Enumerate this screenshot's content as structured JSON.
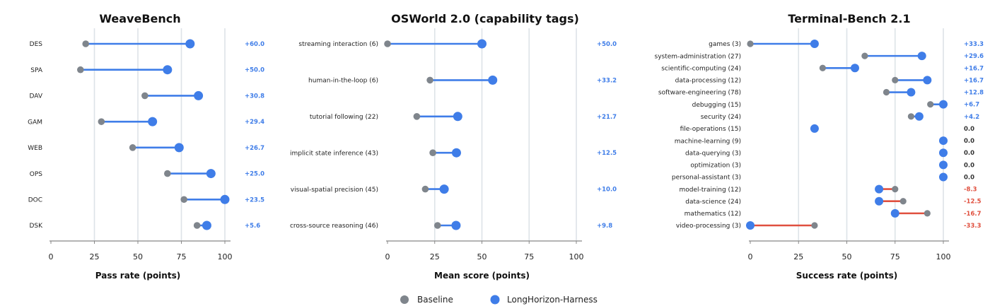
{
  "legend": {
    "baseline_label": "Baseline",
    "harness_label": "LongHorizon-Harness"
  },
  "colors": {
    "baseline": "#7f858c",
    "harness": "#3f7de8",
    "improve_line": "#3f7de8",
    "regress_line": "#e0503f",
    "delta_pos": "#3f7de8",
    "delta_zero": "#333333",
    "delta_neg": "#e0503f",
    "grid": "#dde3e8",
    "axis": "#888888"
  },
  "chart_data": [
    {
      "type": "dumbbell",
      "title": "WeaveBench",
      "xlabel": "Pass rate (points)",
      "xlim": [
        0,
        100
      ],
      "xticks": [
        0,
        25,
        50,
        75,
        100
      ],
      "grid": "vertical",
      "categories": [
        "DES",
        "SPA",
        "DAV",
        "GAM",
        "WEB",
        "OPS",
        "DOC",
        "DSK"
      ],
      "baseline": [
        20,
        17,
        54,
        29,
        47,
        67,
        76.5,
        84
      ],
      "harness": [
        80,
        67,
        84.8,
        58.4,
        73.7,
        92,
        100,
        89.6
      ],
      "deltas": [
        "+60.0",
        "+50.0",
        "+30.8",
        "+29.4",
        "+26.7",
        "+25.0",
        "+23.5",
        "+5.6"
      ]
    },
    {
      "type": "dumbbell",
      "title": "OSWorld 2.0 (capability tags)",
      "xlabel": "Mean score (points)",
      "xlim": [
        0,
        100
      ],
      "xticks": [
        0,
        25,
        50,
        75,
        100
      ],
      "grid": "vertical",
      "categories": [
        "streaming interaction (6)",
        "human-in-the-loop (6)",
        "tutorial following (22)",
        "implicit state inference (43)",
        "visual-spatial precision (45)",
        "cross-source reasoning (46)"
      ],
      "baseline": [
        0,
        22.5,
        15.5,
        24,
        20,
        26.5
      ],
      "harness": [
        50,
        55.7,
        37.2,
        36.5,
        30,
        36.3
      ],
      "deltas": [
        "+50.0",
        "+33.2",
        "+21.7",
        "+12.5",
        "+10.0",
        "+9.8"
      ]
    },
    {
      "type": "dumbbell",
      "title": "Terminal-Bench 2.1",
      "xlabel": "Success rate (points)",
      "xlim": [
        0,
        100
      ],
      "xticks": [
        0,
        25,
        50,
        75,
        100
      ],
      "grid": "vertical",
      "categories": [
        "games (3)",
        "system-administration (27)",
        "scientific-computing (24)",
        "data-processing (12)",
        "software-engineering (78)",
        "debugging (15)",
        "security (24)",
        "file-operations (15)",
        "machine-learning (9)",
        "data-querying (3)",
        "optimization (3)",
        "personal-assistant (3)",
        "model-training (12)",
        "data-science (24)",
        "mathematics (12)",
        "video-processing (3)"
      ],
      "baseline": [
        0,
        59.3,
        37.5,
        75,
        70.5,
        93.3,
        83.3,
        null,
        null,
        null,
        null,
        null,
        75,
        79.2,
        91.7,
        33.3
      ],
      "harness": [
        33.3,
        88.9,
        54.2,
        91.7,
        83.3,
        100,
        87.5,
        33.3,
        100,
        100,
        100,
        100,
        66.7,
        66.7,
        75,
        0
      ],
      "deltas": [
        "+33.3",
        "+29.6",
        "+16.7",
        "+16.7",
        "+12.8",
        "+6.7",
        "+4.2",
        "0.0",
        "0.0",
        "0.0",
        "0.0",
        "0.0",
        "-8.3",
        "-12.5",
        "-16.7",
        "-33.3"
      ]
    }
  ]
}
